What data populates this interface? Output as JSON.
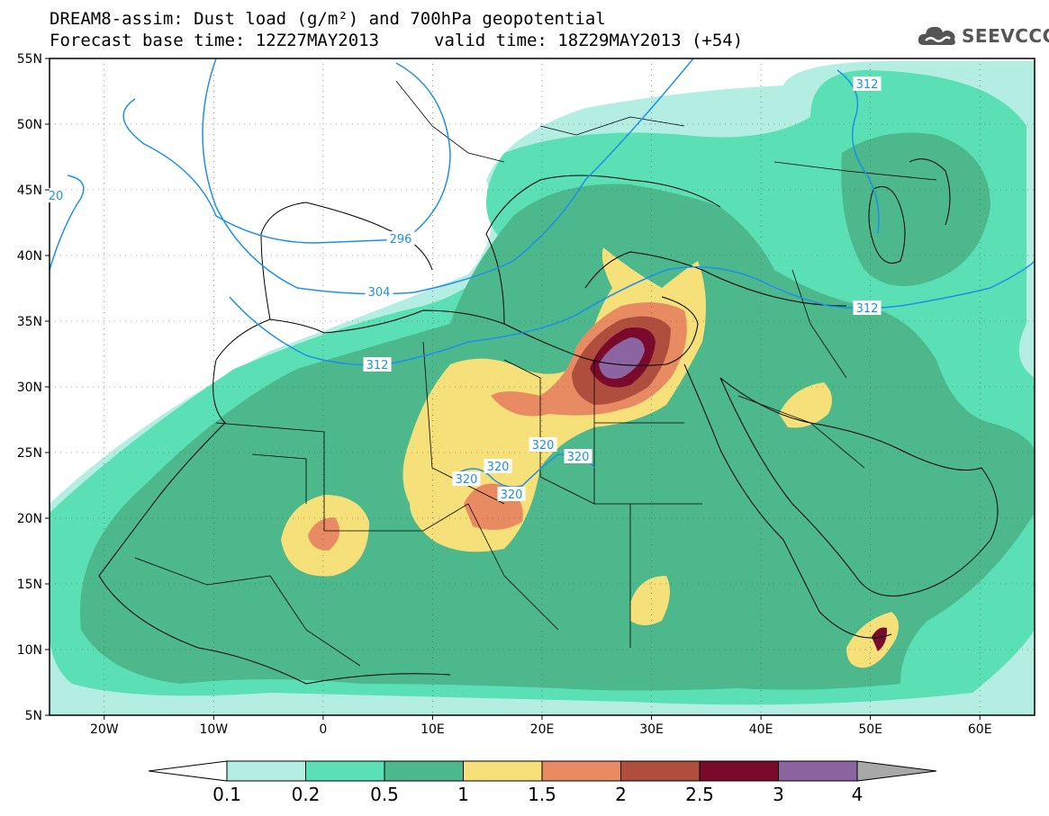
{
  "header": {
    "title_line1": "DREAM8-assim: Dust load (g/m²) and 700hPa geopotential",
    "base_time": "Forecast base time: 12Z27MAY2013",
    "valid_time": "valid time: 18Z29MAY2013 (+54)"
  },
  "logo": {
    "text": "SEEVCCC",
    "icon": "cloud-icon"
  },
  "map": {
    "lon_range": [
      -25,
      65
    ],
    "lat_range": [
      5,
      55
    ],
    "lat_labels": [
      "55N",
      "50N",
      "45N",
      "40N",
      "35N",
      "30N",
      "25N",
      "20N",
      "15N",
      "10N",
      "5N"
    ],
    "lon_labels": [
      "20W",
      "10W",
      "0",
      "10E",
      "20E",
      "30E",
      "40E",
      "50E",
      "60E"
    ],
    "contour_labels": [
      "20",
      "296",
      "304",
      "312",
      "312",
      "312",
      "320",
      "320",
      "320",
      "320",
      "320"
    ]
  },
  "colorbar": {
    "labels": [
      "0.1",
      "0.2",
      "0.5",
      "1",
      "1.5",
      "2",
      "2.5",
      "3",
      "4"
    ],
    "colors": [
      "#b4eee2",
      "#5ae0b4",
      "#4cb88c",
      "#f5e07a",
      "#e88a62",
      "#b04e3e",
      "#7a0a2c",
      "#8c64a0"
    ],
    "low_color": "#ffffff",
    "high_color": "#a8a8a8"
  }
}
